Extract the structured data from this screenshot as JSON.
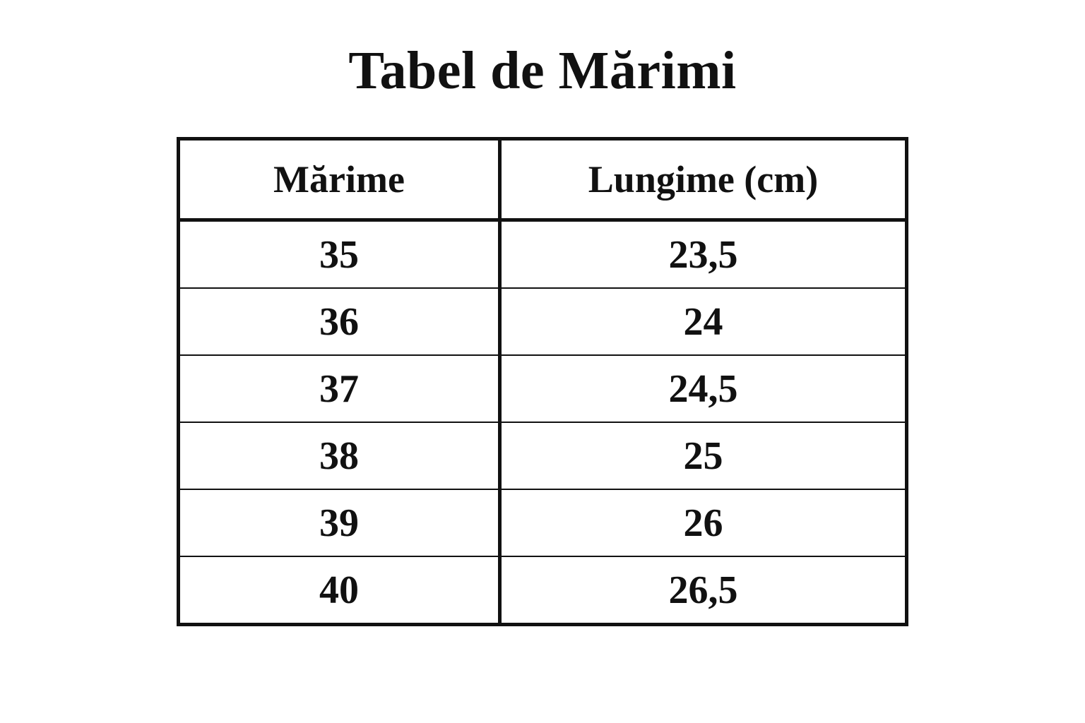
{
  "title": "Tabel de Mărimi",
  "table": {
    "columns": [
      "Mărime",
      "Lungime (cm)"
    ],
    "rows": [
      [
        "35",
        "23,5"
      ],
      [
        "36",
        "24"
      ],
      [
        "37",
        "24,5"
      ],
      [
        "38",
        "25"
      ],
      [
        "39",
        "26"
      ],
      [
        "40",
        "26,5"
      ]
    ]
  },
  "chart_data": {
    "type": "table",
    "title": "Tabel de Mărimi",
    "columns": [
      "Mărime",
      "Lungime (cm)"
    ],
    "rows": [
      [
        "35",
        "23,5"
      ],
      [
        "36",
        "24"
      ],
      [
        "37",
        "24,5"
      ],
      [
        "38",
        "25"
      ],
      [
        "39",
        "26"
      ],
      [
        "40",
        "26,5"
      ]
    ],
    "sizes": [
      35,
      36,
      37,
      38,
      39,
      40
    ],
    "lengths_cm": [
      23.5,
      24,
      24.5,
      25,
      26,
      26.5
    ]
  },
  "colors": {
    "text": "#111111",
    "border": "#111111",
    "background": "#ffffff"
  }
}
